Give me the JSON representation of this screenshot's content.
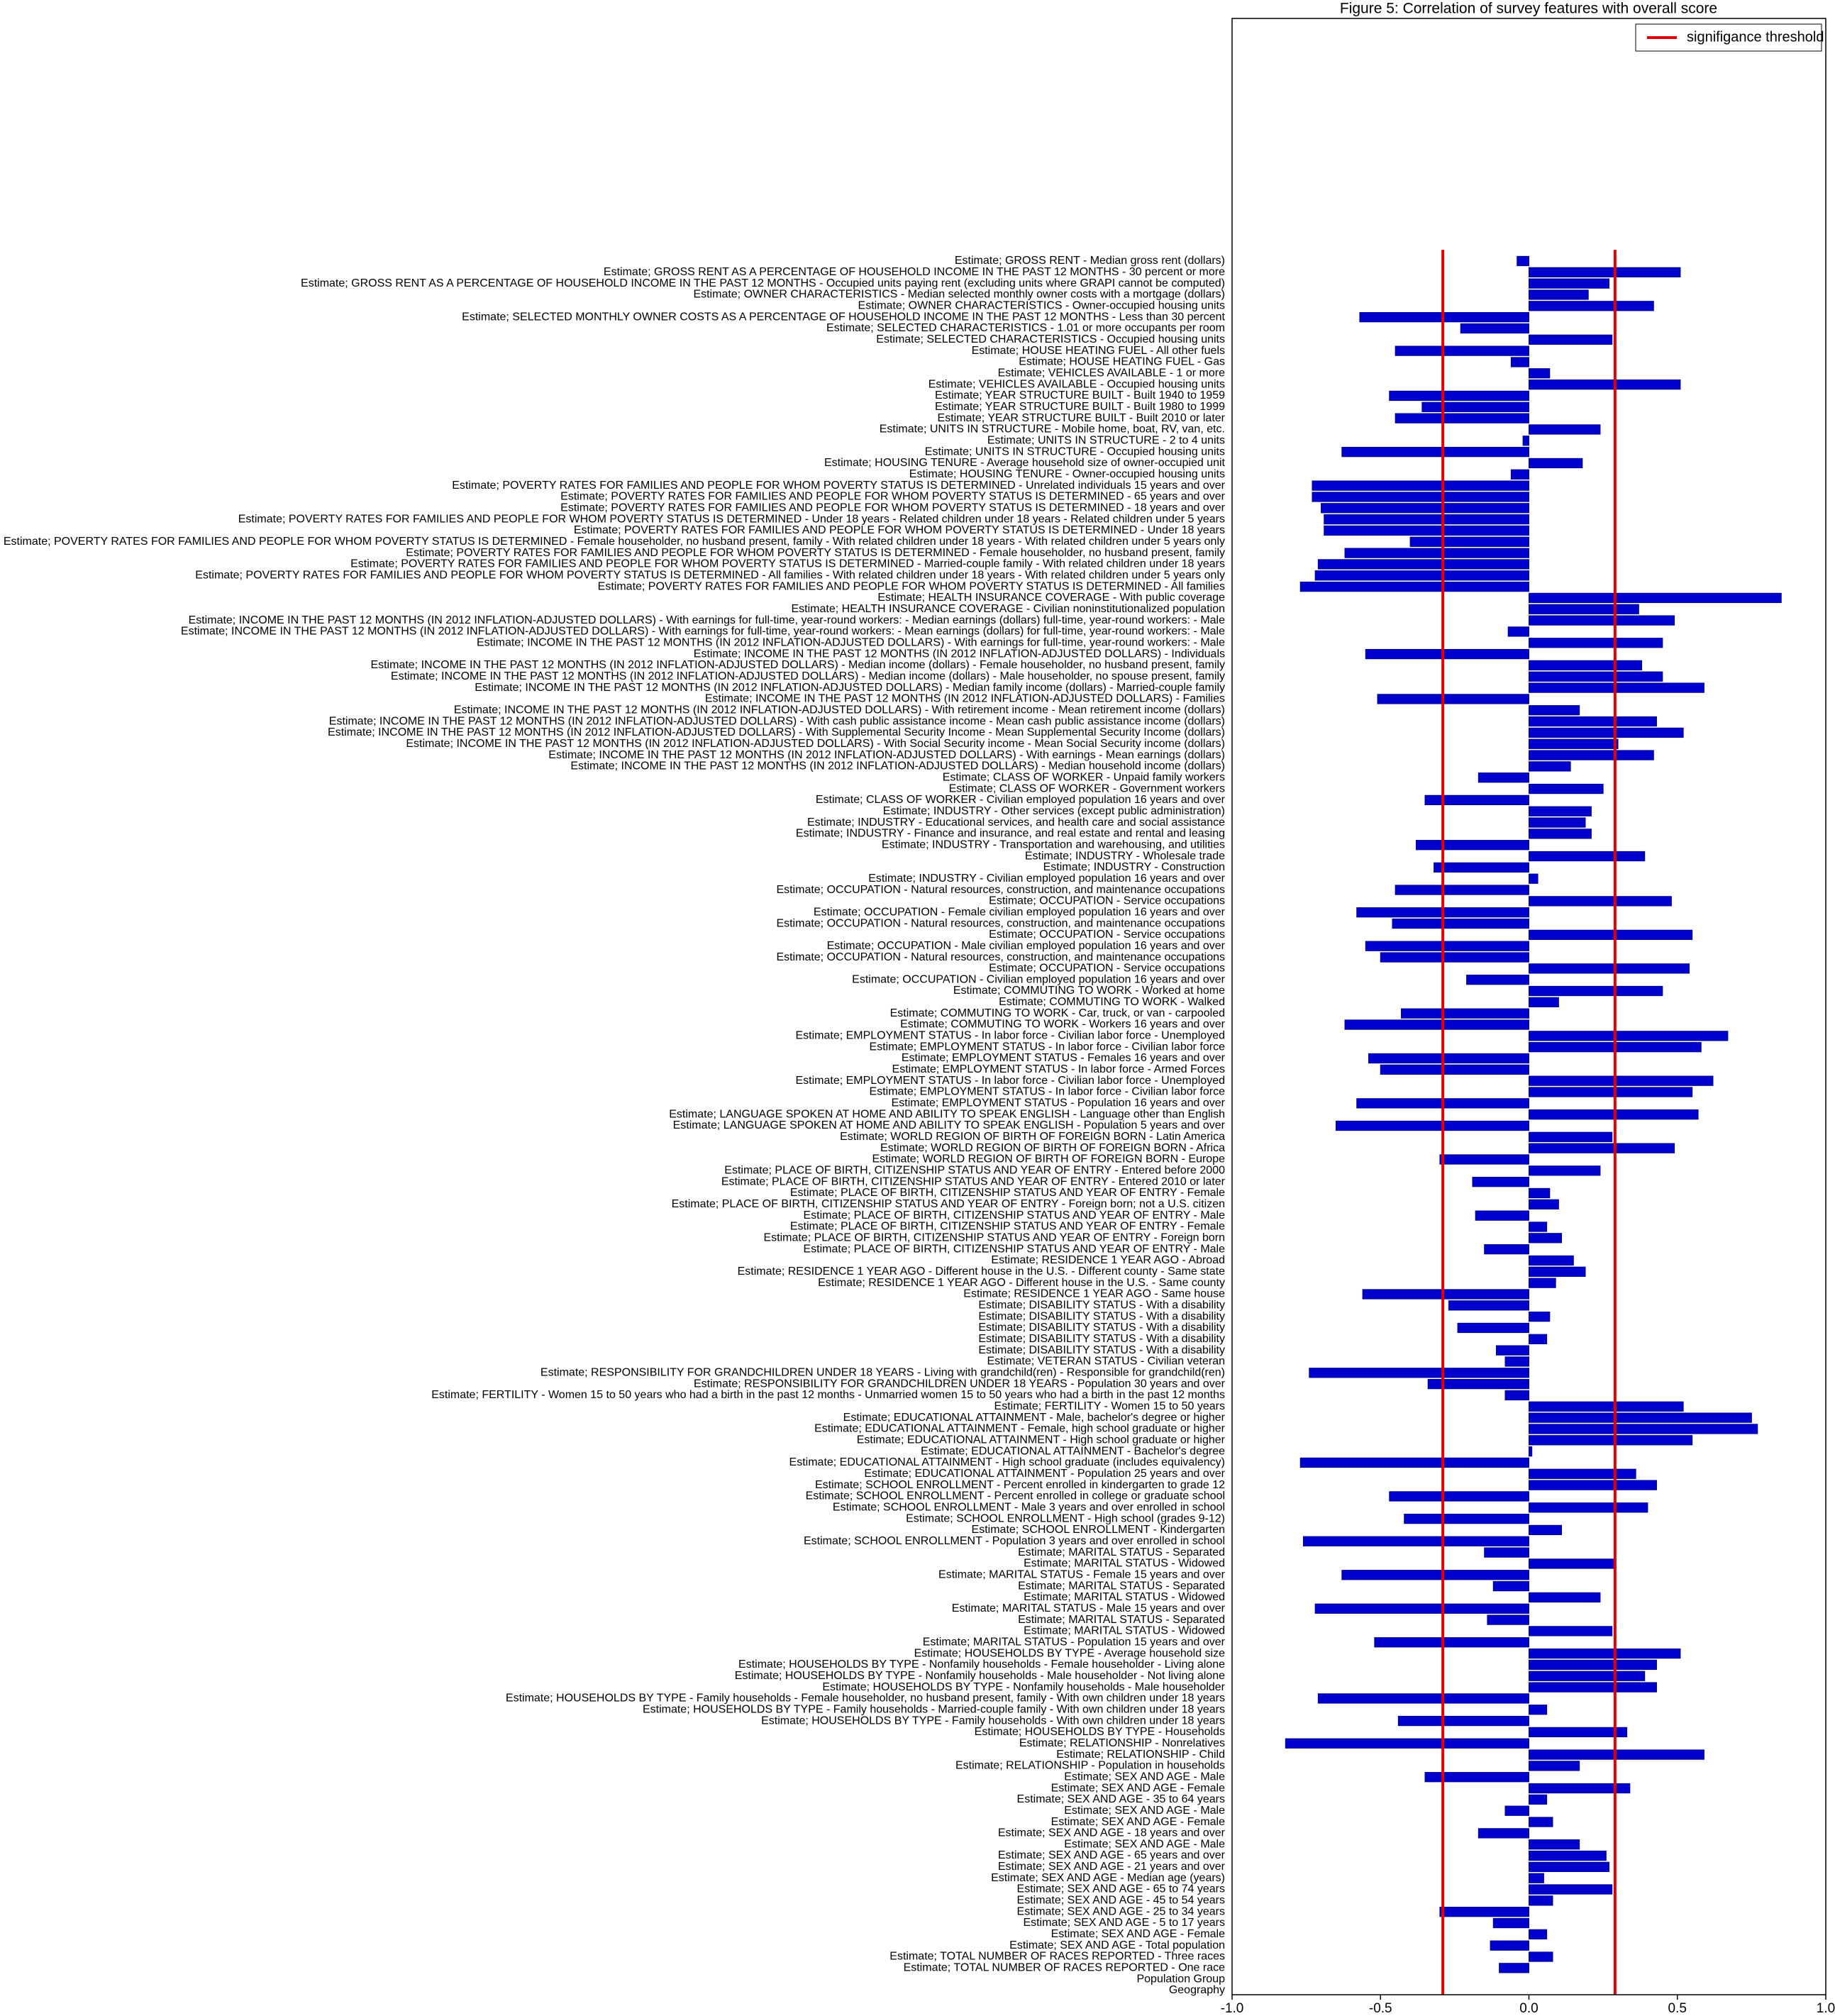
{
  "chart_data": {
    "type": "barh",
    "title": "Figure 5: Correlation of survey features with overall score",
    "categories": [
      "Estimate; GROSS RENT - Median gross rent (dollars)",
      "Estimate; GROSS RENT AS A PERCENTAGE OF HOUSEHOLD INCOME IN THE PAST 12 MONTHS - 30 percent or more",
      "Estimate; GROSS RENT AS A PERCENTAGE OF HOUSEHOLD INCOME IN THE PAST 12 MONTHS - Occupied units paying rent (excluding units where GRAPI cannot be computed)",
      "Estimate; OWNER CHARACTERISTICS - Median selected monthly owner costs with a mortgage (dollars)",
      "Estimate; OWNER CHARACTERISTICS - Owner-occupied housing units",
      "Estimate; SELECTED MONTHLY OWNER COSTS AS A PERCENTAGE OF HOUSEHOLD INCOME IN THE PAST 12 MONTHS - Less than 30 percent",
      "Estimate; SELECTED CHARACTERISTICS - 1.01 or more occupants per room",
      "Estimate; SELECTED CHARACTERISTICS - Occupied housing units",
      "Estimate; HOUSE HEATING FUEL - All other fuels",
      "Estimate; HOUSE HEATING FUEL - Gas",
      "Estimate; VEHICLES AVAILABLE - 1 or more",
      "Estimate; VEHICLES AVAILABLE - Occupied housing units",
      "Estimate; YEAR STRUCTURE BUILT - Built 1940 to 1959",
      "Estimate; YEAR STRUCTURE BUILT - Built 1980 to 1999",
      "Estimate; YEAR STRUCTURE BUILT - Built 2010 or later",
      "Estimate; UNITS IN STRUCTURE - Mobile home, boat, RV, van, etc.",
      "Estimate; UNITS IN STRUCTURE - 2 to 4 units",
      "Estimate; UNITS IN STRUCTURE - Occupied housing units",
      "Estimate; HOUSING TENURE - Average household size of owner-occupied unit",
      "Estimate; HOUSING TENURE - Owner-occupied housing units",
      "Estimate; POVERTY RATES FOR FAMILIES AND PEOPLE FOR WHOM POVERTY STATUS IS DETERMINED - Unrelated individuals 15 years and over",
      "Estimate; POVERTY RATES FOR FAMILIES AND PEOPLE FOR WHOM POVERTY STATUS IS DETERMINED - 65 years and over",
      "Estimate; POVERTY RATES FOR FAMILIES AND PEOPLE FOR WHOM POVERTY STATUS IS DETERMINED - 18 years and over",
      "Estimate; POVERTY RATES FOR FAMILIES AND PEOPLE FOR WHOM POVERTY STATUS IS DETERMINED - Under 18 years - Related children under 18 years - Related children under 5 years",
      "Estimate; POVERTY RATES FOR FAMILIES AND PEOPLE FOR WHOM POVERTY STATUS IS DETERMINED - Under 18 years",
      "Estimate; POVERTY RATES FOR FAMILIES AND PEOPLE FOR WHOM POVERTY STATUS IS DETERMINED - Female householder, no husband present, family - With related children under 18 years - With related children under 5 years only",
      "Estimate; POVERTY RATES FOR FAMILIES AND PEOPLE FOR WHOM POVERTY STATUS IS DETERMINED - Female householder, no husband present, family",
      "Estimate; POVERTY RATES FOR FAMILIES AND PEOPLE FOR WHOM POVERTY STATUS IS DETERMINED - Married-couple family - With related children under 18 years",
      "Estimate; POVERTY RATES FOR FAMILIES AND PEOPLE FOR WHOM POVERTY STATUS IS DETERMINED - All families - With related children under 18 years - With related children under 5 years only",
      "Estimate; POVERTY RATES FOR FAMILIES AND PEOPLE FOR WHOM POVERTY STATUS IS DETERMINED - All families",
      "Estimate; HEALTH INSURANCE COVERAGE - With public coverage",
      "Estimate; HEALTH INSURANCE COVERAGE - Civilian noninstitutionalized population",
      "Estimate; INCOME IN THE PAST 12 MONTHS (IN 2012 INFLATION-ADJUSTED DOLLARS) - With earnings for full-time, year-round workers: - Median earnings (dollars) full-time, year-round workers: - Male",
      "Estimate; INCOME IN THE PAST 12 MONTHS (IN 2012 INFLATION-ADJUSTED DOLLARS) - With earnings for full-time, year-round workers: - Mean earnings (dollars) for full-time, year-round workers: - Male",
      "Estimate; INCOME IN THE PAST 12 MONTHS (IN 2012 INFLATION-ADJUSTED DOLLARS) - With earnings for full-time, year-round workers: - Male",
      "Estimate; INCOME IN THE PAST 12 MONTHS (IN 2012 INFLATION-ADJUSTED DOLLARS) - Individuals",
      "Estimate; INCOME IN THE PAST 12 MONTHS (IN 2012 INFLATION-ADJUSTED DOLLARS) - Median income (dollars) - Female householder, no husband present, family",
      "Estimate; INCOME IN THE PAST 12 MONTHS (IN 2012 INFLATION-ADJUSTED DOLLARS) - Median income (dollars) - Male householder, no spouse present, family",
      "Estimate; INCOME IN THE PAST 12 MONTHS (IN 2012 INFLATION-ADJUSTED DOLLARS) - Median family income (dollars) - Married-couple family",
      "Estimate; INCOME IN THE PAST 12 MONTHS (IN 2012 INFLATION-ADJUSTED DOLLARS) - Families",
      "Estimate; INCOME IN THE PAST 12 MONTHS (IN 2012 INFLATION-ADJUSTED DOLLARS) - With retirement income - Mean retirement income (dollars)",
      "Estimate; INCOME IN THE PAST 12 MONTHS (IN 2012 INFLATION-ADJUSTED DOLLARS) - With cash public assistance income - Mean cash public assistance income (dollars)",
      "Estimate; INCOME IN THE PAST 12 MONTHS (IN 2012 INFLATION-ADJUSTED DOLLARS) - With Supplemental Security Income - Mean Supplemental Security Income (dollars)",
      "Estimate; INCOME IN THE PAST 12 MONTHS (IN 2012 INFLATION-ADJUSTED DOLLARS) - With Social Security income - Mean Social Security income (dollars)",
      "Estimate; INCOME IN THE PAST 12 MONTHS (IN 2012 INFLATION-ADJUSTED DOLLARS) - With earnings - Mean earnings (dollars)",
      "Estimate; INCOME IN THE PAST 12 MONTHS (IN 2012 INFLATION-ADJUSTED DOLLARS) - Median household income (dollars)",
      "Estimate; CLASS OF WORKER - Unpaid family workers",
      "Estimate; CLASS OF WORKER - Government workers",
      "Estimate; CLASS OF WORKER - Civilian employed population 16 years and over",
      "Estimate; INDUSTRY - Other services (except public administration)",
      "Estimate; INDUSTRY - Educational services, and health care and social assistance",
      "Estimate; INDUSTRY - Finance and insurance, and real estate and rental and leasing",
      "Estimate; INDUSTRY - Transportation and warehousing, and utilities",
      "Estimate; INDUSTRY - Wholesale trade",
      "Estimate; INDUSTRY - Construction",
      "Estimate; INDUSTRY - Civilian employed population 16 years and over",
      "Estimate; OCCUPATION - Natural resources, construction, and maintenance occupations",
      "Estimate; OCCUPATION - Service occupations",
      "Estimate; OCCUPATION - Female civilian employed population 16 years and over",
      "Estimate; OCCUPATION - Natural resources, construction, and maintenance occupations",
      "Estimate; OCCUPATION - Service occupations",
      "Estimate; OCCUPATION - Male civilian employed population 16 years and over",
      "Estimate; OCCUPATION - Natural resources, construction, and maintenance occupations",
      "Estimate; OCCUPATION - Service occupations",
      "Estimate; OCCUPATION - Civilian employed population 16 years and over",
      "Estimate; COMMUTING TO WORK - Worked at home",
      "Estimate; COMMUTING TO WORK - Walked",
      "Estimate; COMMUTING TO WORK - Car, truck, or van - carpooled",
      "Estimate; COMMUTING TO WORK - Workers 16 years and over",
      "Estimate; EMPLOYMENT STATUS - In labor force - Civilian labor force - Unemployed",
      "Estimate; EMPLOYMENT STATUS - In labor force - Civilian labor force",
      "Estimate; EMPLOYMENT STATUS - Females 16 years and over",
      "Estimate; EMPLOYMENT STATUS - In labor force - Armed Forces",
      "Estimate; EMPLOYMENT STATUS - In labor force - Civilian labor force - Unemployed",
      "Estimate; EMPLOYMENT STATUS - In labor force - Civilian labor force",
      "Estimate; EMPLOYMENT STATUS - Population 16 years and over",
      "Estimate; LANGUAGE SPOKEN AT HOME AND ABILITY TO SPEAK ENGLISH - Language other than English",
      "Estimate; LANGUAGE SPOKEN AT HOME AND ABILITY TO SPEAK ENGLISH - Population 5 years and over",
      "Estimate; WORLD REGION OF BIRTH OF FOREIGN BORN - Latin America",
      "Estimate; WORLD REGION OF BIRTH OF FOREIGN BORN - Africa",
      "Estimate; WORLD REGION OF BIRTH OF FOREIGN BORN - Europe",
      "Estimate; PLACE OF BIRTH, CITIZENSHIP STATUS AND YEAR OF ENTRY - Entered before 2000",
      "Estimate; PLACE OF BIRTH, CITIZENSHIP STATUS AND YEAR OF ENTRY - Entered 2010 or later",
      "Estimate; PLACE OF BIRTH, CITIZENSHIP STATUS AND YEAR OF ENTRY - Female",
      "Estimate; PLACE OF BIRTH, CITIZENSHIP STATUS AND YEAR OF ENTRY - Foreign born; not a U.S. citizen",
      "Estimate; PLACE OF BIRTH, CITIZENSHIP STATUS AND YEAR OF ENTRY - Male",
      "Estimate; PLACE OF BIRTH, CITIZENSHIP STATUS AND YEAR OF ENTRY - Female",
      "Estimate; PLACE OF BIRTH, CITIZENSHIP STATUS AND YEAR OF ENTRY - Foreign born",
      "Estimate; PLACE OF BIRTH, CITIZENSHIP STATUS AND YEAR OF ENTRY - Male",
      "Estimate; RESIDENCE 1 YEAR AGO - Abroad",
      "Estimate; RESIDENCE 1 YEAR AGO - Different house in the U.S. - Different county - Same state",
      "Estimate; RESIDENCE 1 YEAR AGO - Different house in the U.S. - Same county",
      "Estimate; RESIDENCE 1 YEAR AGO - Same house",
      "Estimate; DISABILITY STATUS - With a disability",
      "Estimate; DISABILITY STATUS - With a disability",
      "Estimate; DISABILITY STATUS - With a disability",
      "Estimate; DISABILITY STATUS - With a disability",
      "Estimate; DISABILITY STATUS - With a disability",
      "Estimate; VETERAN STATUS - Civilian veteran",
      "Estimate; RESPONSIBILITY FOR GRANDCHILDREN UNDER 18 YEARS - Living with grandchild(ren) - Responsible for grandchild(ren)",
      "Estimate; RESPONSIBILITY FOR GRANDCHILDREN UNDER 18 YEARS - Population 30 years and over",
      "Estimate; FERTILITY - Women 15 to 50 years who had a birth in the past 12 months - Unmarried women 15 to 50 years who had a birth in the past 12 months",
      "Estimate; FERTILITY - Women 15 to 50 years",
      "Estimate; EDUCATIONAL ATTAINMENT - Male, bachelor's degree or higher",
      "Estimate; EDUCATIONAL ATTAINMENT - Female, high school graduate or higher",
      "Estimate; EDUCATIONAL ATTAINMENT - High school graduate or higher",
      "Estimate; EDUCATIONAL ATTAINMENT - Bachelor's degree",
      "Estimate; EDUCATIONAL ATTAINMENT - High school graduate (includes equivalency)",
      "Estimate; EDUCATIONAL ATTAINMENT - Population 25 years and over",
      "Estimate; SCHOOL ENROLLMENT - Percent enrolled in kindergarten to grade 12",
      "Estimate; SCHOOL ENROLLMENT - Percent enrolled in college or graduate school",
      "Estimate; SCHOOL ENROLLMENT - Male 3 years and over enrolled in school",
      "Estimate; SCHOOL ENROLLMENT - High school (grades 9-12)",
      "Estimate; SCHOOL ENROLLMENT - Kindergarten",
      "Estimate; SCHOOL ENROLLMENT - Population 3 years and over enrolled in school",
      "Estimate; MARITAL STATUS - Separated",
      "Estimate; MARITAL STATUS - Widowed",
      "Estimate; MARITAL STATUS - Female 15 years and over",
      "Estimate; MARITAL STATUS - Separated",
      "Estimate; MARITAL STATUS - Widowed",
      "Estimate; MARITAL STATUS - Male 15 years and over",
      "Estimate; MARITAL STATUS - Separated",
      "Estimate; MARITAL STATUS - Widowed",
      "Estimate; MARITAL STATUS - Population 15 years and over",
      "Estimate; HOUSEHOLDS BY TYPE - Average household size",
      "Estimate; HOUSEHOLDS BY TYPE - Nonfamily households - Female householder - Living alone",
      "Estimate; HOUSEHOLDS BY TYPE - Nonfamily households - Male householder - Not living alone",
      "Estimate; HOUSEHOLDS BY TYPE - Nonfamily households - Male householder",
      "Estimate; HOUSEHOLDS BY TYPE - Family households - Female householder, no husband present, family - With own children under 18 years",
      "Estimate; HOUSEHOLDS BY TYPE - Family households - Married-couple family - With own children under 18 years",
      "Estimate; HOUSEHOLDS BY TYPE - Family households - With own children under 18 years",
      "Estimate; HOUSEHOLDS BY TYPE - Households",
      "Estimate; RELATIONSHIP - Nonrelatives",
      "Estimate; RELATIONSHIP - Child",
      "Estimate; RELATIONSHIP - Population in households",
      "Estimate; SEX AND AGE - Male",
      "Estimate; SEX AND AGE - Female",
      "Estimate; SEX AND AGE - 35 to 64 years",
      "Estimate; SEX AND AGE - Male",
      "Estimate; SEX AND AGE - Female",
      "Estimate; SEX AND AGE - 18 years and over",
      "Estimate; SEX AND AGE - Male",
      "Estimate; SEX AND AGE - 65 years and over",
      "Estimate; SEX AND AGE - 21 years and over",
      "Estimate; SEX AND AGE - Median age (years)",
      "Estimate; SEX AND AGE - 65 to 74 years",
      "Estimate; SEX AND AGE - 45 to 54 years",
      "Estimate; SEX AND AGE - 25 to 34 years",
      "Estimate; SEX AND AGE - 5 to 17 years",
      "Estimate; SEX AND AGE - Female",
      "Estimate; SEX AND AGE - Total population",
      "Estimate; TOTAL NUMBER OF RACES REPORTED - Three races",
      "Estimate; TOTAL NUMBER OF RACES REPORTED - One race",
      "Population Group",
      "Geography"
    ],
    "values": [
      -0.04,
      0.51,
      0.27,
      0.2,
      0.42,
      -0.57,
      -0.23,
      0.28,
      -0.45,
      -0.06,
      0.07,
      0.51,
      -0.47,
      -0.36,
      -0.45,
      0.24,
      -0.02,
      -0.63,
      0.18,
      -0.06,
      -0.73,
      -0.73,
      -0.7,
      -0.69,
      -0.69,
      -0.4,
      -0.62,
      -0.71,
      -0.72,
      -0.77,
      0.85,
      0.37,
      0.49,
      -0.07,
      0.45,
      -0.55,
      0.38,
      0.45,
      0.59,
      -0.51,
      0.17,
      0.43,
      0.52,
      0.3,
      0.42,
      0.14,
      -0.17,
      0.25,
      -0.35,
      0.21,
      0.19,
      0.21,
      -0.38,
      0.39,
      -0.32,
      0.03,
      -0.45,
      0.48,
      -0.58,
      -0.46,
      0.55,
      -0.55,
      -0.5,
      0.54,
      -0.21,
      0.45,
      0.1,
      -0.43,
      -0.62,
      0.67,
      0.58,
      -0.54,
      -0.5,
      0.62,
      0.55,
      -0.58,
      0.57,
      -0.65,
      0.28,
      0.49,
      -0.3,
      0.24,
      -0.19,
      0.07,
      0.1,
      -0.18,
      0.06,
      0.11,
      -0.15,
      0.15,
      0.19,
      0.09,
      -0.56,
      -0.27,
      0.07,
      -0.24,
      0.06,
      -0.11,
      -0.08,
      -0.74,
      -0.34,
      -0.08,
      0.52,
      0.75,
      0.77,
      0.55,
      0.01,
      -0.77,
      0.36,
      0.43,
      -0.47,
      0.4,
      -0.42,
      0.11,
      -0.76,
      -0.15,
      0.29,
      -0.63,
      -0.12,
      0.24,
      -0.72,
      -0.14,
      0.28,
      -0.52,
      0.51,
      0.43,
      0.39,
      0.43,
      -0.71,
      0.06,
      -0.44,
      0.33,
      -0.82,
      0.59,
      0.17,
      -0.35,
      0.34,
      0.06,
      -0.08,
      0.08,
      -0.17,
      0.17,
      0.26,
      0.27,
      0.05,
      0.28,
      0.08,
      -0.3,
      -0.12,
      0.06,
      -0.13,
      0.08,
      -0.1,
      0,
      0
    ],
    "color": "#0000cd",
    "xlim": [
      -1,
      1
    ],
    "xticks": [
      {
        "value": -1,
        "label": "-1.0"
      },
      {
        "value": -0.5,
        "label": "-0.5"
      },
      {
        "value": 0,
        "label": "0.0"
      },
      {
        "value": 0.5,
        "label": "0.5"
      },
      {
        "value": 1,
        "label": "1.0"
      }
    ],
    "threshold": {
      "name": "signifigance threshold",
      "values": [
        -0.29,
        0.29
      ],
      "color": "#e00000"
    },
    "legend": "upper right"
  }
}
